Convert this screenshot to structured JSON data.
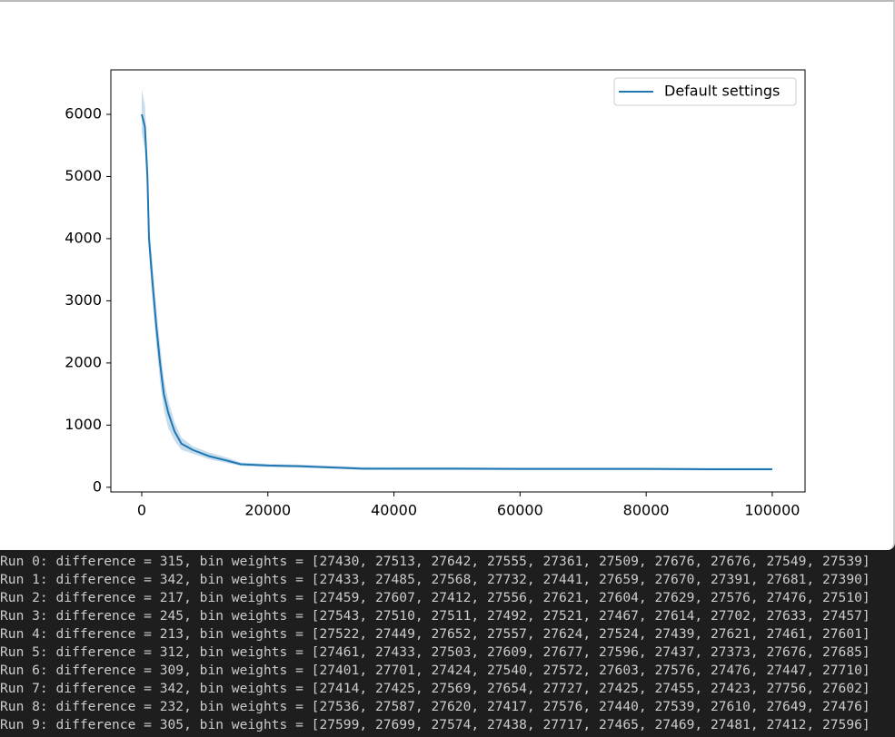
{
  "chart_data": {
    "type": "line",
    "x": [
      0,
      500,
      900,
      1150,
      1700,
      2300,
      2900,
      3500,
      4200,
      5200,
      6300,
      8100,
      10700,
      13500,
      15700,
      20000,
      25000,
      30000,
      35000,
      40000,
      50000,
      60000,
      70000,
      80000,
      90000,
      100000
    ],
    "series": [
      {
        "name": "Default settings",
        "color": "#1f77b4",
        "values": [
          6000,
          5800,
          5000,
          4000,
          3300,
          2600,
          2000,
          1500,
          1200,
          900,
          700,
          600,
          500,
          430,
          370,
          350,
          340,
          320,
          300,
          300,
          300,
          295,
          295,
          295,
          290,
          290
        ],
        "band_upper": [
          6400,
          6150,
          5300,
          4250,
          3600,
          2900,
          2300,
          1750,
          1400,
          1050,
          800,
          660,
          560,
          480,
          400,
          375,
          365,
          345,
          325,
          320,
          320,
          315,
          315,
          315,
          310,
          310
        ],
        "band_lower": [
          5700,
          5450,
          4700,
          3750,
          3000,
          2300,
          1700,
          1250,
          950,
          750,
          600,
          540,
          450,
          390,
          345,
          325,
          315,
          300,
          280,
          280,
          280,
          275,
          275,
          275,
          270,
          270
        ]
      }
    ],
    "xlim": [
      -4900,
      105200
    ],
    "ylim": [
      -75,
      6715
    ],
    "xticks": [
      0,
      20000,
      40000,
      60000,
      80000,
      100000
    ],
    "yticks": [
      0,
      1000,
      2000,
      3000,
      4000,
      5000,
      6000
    ],
    "legend": "upper right"
  },
  "output_lines": [
    "Run 0: difference = 315, bin weights = [27430, 27513, 27642, 27555, 27361, 27509, 27676, 27676, 27549, 27539]",
    "Run 1: difference = 342, bin weights = [27433, 27485, 27568, 27732, 27441, 27659, 27670, 27391, 27681, 27390]",
    "Run 2: difference = 217, bin weights = [27459, 27607, 27412, 27556, 27621, 27604, 27629, 27576, 27476, 27510]",
    "Run 3: difference = 245, bin weights = [27543, 27510, 27511, 27492, 27521, 27467, 27614, 27702, 27633, 27457]",
    "Run 4: difference = 213, bin weights = [27522, 27449, 27652, 27557, 27624, 27524, 27439, 27621, 27461, 27601]",
    "Run 5: difference = 312, bin weights = [27461, 27433, 27503, 27609, 27677, 27596, 27437, 27373, 27676, 27685]",
    "Run 6: difference = 309, bin weights = [27401, 27701, 27424, 27540, 27572, 27603, 27576, 27476, 27447, 27710]",
    "Run 7: difference = 342, bin weights = [27414, 27425, 27569, 27654, 27727, 27425, 27455, 27423, 27756, 27602]",
    "Run 8: difference = 232, bin weights = [27536, 27587, 27620, 27417, 27576, 27440, 27539, 27610, 27649, 27476]",
    "Run 9: difference = 305, bin weights = [27599, 27699, 27574, 27438, 27717, 27465, 27469, 27481, 27412, 27596]"
  ]
}
